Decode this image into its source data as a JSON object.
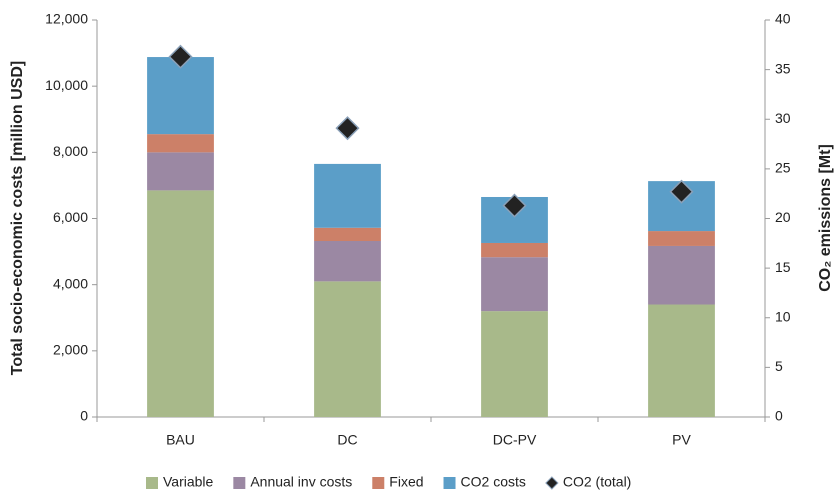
{
  "chart_data": {
    "type": "bar",
    "stacked": true,
    "categories": [
      "BAU",
      "DC",
      "DC-PV",
      "PV"
    ],
    "y_label": "Total socio-economic costs [million USD]",
    "y2_label": "CO₂ emissions [Mt]",
    "ylim": [
      0,
      12000
    ],
    "yticks": [
      0,
      {
        "value": 2000,
        "label": "2,000"
      },
      {
        "value": 4000,
        "label": "4,000"
      },
      {
        "value": 6000,
        "label": "6,000"
      },
      {
        "value": 8000,
        "label": "8,000"
      },
      {
        "value": 10000,
        "label": "10,000"
      },
      {
        "value": 12000,
        "label": "12,000"
      }
    ],
    "y2lim": [
      0,
      40
    ],
    "y2ticks": [
      0,
      5,
      10,
      15,
      20,
      25,
      30,
      35,
      40
    ],
    "grid": false,
    "legend": "bottom",
    "series": [
      {
        "name": "Variable",
        "color": "#a8b98a",
        "values": [
          6850,
          4100,
          3200,
          3400
        ]
      },
      {
        "name": "Annual inv costs",
        "color": "#9b88a3",
        "values": [
          1150,
          1220,
          1630,
          1770
        ]
      },
      {
        "name": "Fixed",
        "color": "#cc8068",
        "values": [
          550,
          400,
          430,
          450
        ]
      },
      {
        "name": "CO2 costs",
        "color": "#5b9ec8",
        "values": [
          2330,
          1930,
          1390,
          1510
        ]
      },
      {
        "name": "CO2 (total)",
        "type": "scatter",
        "marker": "diamond",
        "axis": "y2",
        "color": "#222222",
        "values": [
          36.3,
          29.1,
          21.3,
          22.7
        ]
      }
    ]
  }
}
